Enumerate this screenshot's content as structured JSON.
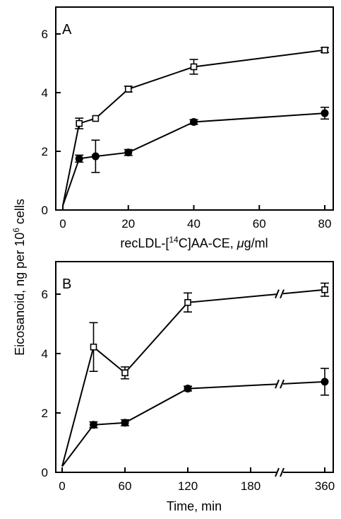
{
  "figure": {
    "ylabel_main": "Eicosanoid, ng per 10",
    "ylabel_sup": "6",
    "ylabel_tail": " cells"
  },
  "chart_data": [
    {
      "type": "line",
      "panel_label": "A",
      "xlabel_pre": "recLDL-[",
      "xlabel_sup": "14",
      "xlabel_post": "C]AA-CE, ",
      "xlabel_mu": "μ",
      "xlabel_end": "g/ml",
      "xlim": [
        0,
        85
      ],
      "ylim": [
        0,
        7
      ],
      "xticks": [
        0,
        20,
        40,
        60,
        80
      ],
      "yticks": [
        0,
        2,
        4,
        6
      ],
      "series": [
        {
          "marker": "open-square",
          "x": [
            0,
            5,
            10,
            20,
            40,
            80
          ],
          "y": [
            0.15,
            2.95,
            3.12,
            4.12,
            4.88,
            5.45
          ],
          "err": [
            0,
            0.18,
            0,
            0.1,
            0.25,
            0.08
          ]
        },
        {
          "marker": "filled-circle",
          "x": [
            0,
            5,
            10,
            20,
            40,
            80
          ],
          "y": [
            0.15,
            1.75,
            1.83,
            1.96,
            3.0,
            3.3
          ],
          "err": [
            0,
            0.12,
            0.55,
            0.1,
            0.08,
            0.2
          ]
        }
      ]
    },
    {
      "type": "line",
      "panel_label": "B",
      "xlabel": "Time, min",
      "xlim": [
        0,
        360
      ],
      "ylim": [
        0,
        7
      ],
      "x_break": [
        180,
        360
      ],
      "xticks": [
        "0",
        "60",
        "120",
        "180",
        "360"
      ],
      "yticks": [
        0,
        2,
        4,
        6
      ],
      "series": [
        {
          "marker": "open-square",
          "x": [
            0,
            30,
            60,
            120,
            360
          ],
          "y": [
            0.2,
            4.22,
            3.35,
            5.72,
            6.15
          ],
          "err": [
            0,
            0.82,
            0.2,
            0.32,
            0.22
          ]
        },
        {
          "marker": "filled-circle",
          "x": [
            0,
            30,
            60,
            120,
            360
          ],
          "y": [
            0.2,
            1.6,
            1.67,
            2.82,
            3.05
          ],
          "err": [
            0,
            0.1,
            0.1,
            0.08,
            0.45
          ]
        }
      ]
    }
  ]
}
